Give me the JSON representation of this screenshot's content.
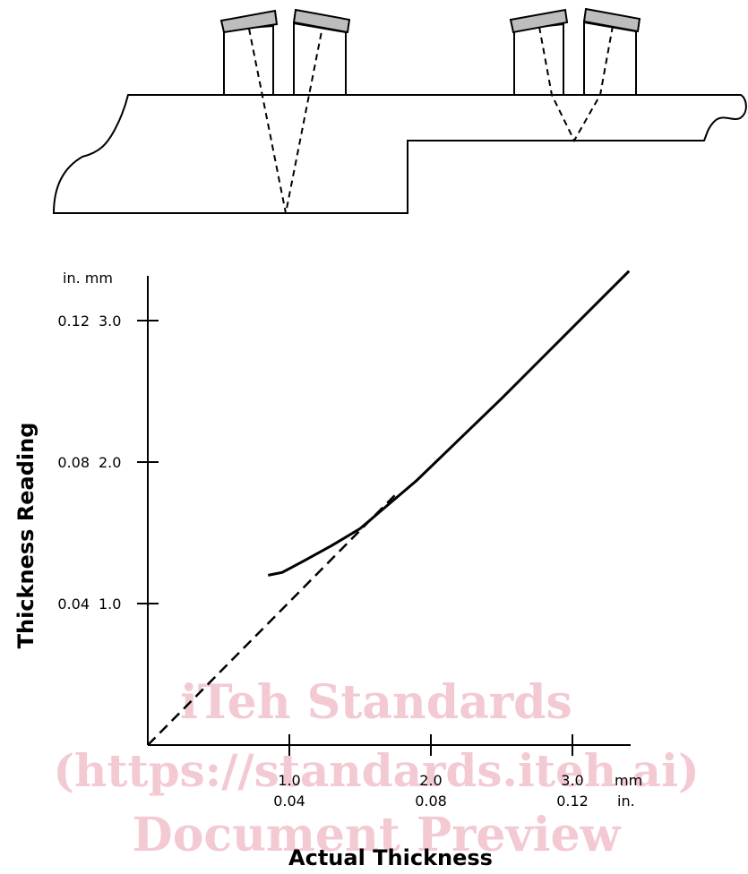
{
  "watermark": {
    "line1": "iTeh Standards",
    "line2": "(https://standards.iteh.ai)",
    "line3": "Document Preview",
    "color": "#f3c9d2"
  },
  "chart_data": {
    "type": "line",
    "xlabel": "Actual Thickness",
    "ylabel": "Thickness Reading",
    "x_unit_primary": "mm",
    "x_unit_secondary": "in.",
    "y_unit_label": "in. mm",
    "xlim": [
      0,
      3.4
    ],
    "ylim": [
      0,
      3.3
    ],
    "x_ticks": [
      {
        "value": 1.0,
        "mm": "1.0",
        "in": "0.04"
      },
      {
        "value": 2.0,
        "mm": "2.0",
        "in": "0.08"
      },
      {
        "value": 3.0,
        "mm": "3.0",
        "in": "0.12"
      }
    ],
    "y_ticks": [
      {
        "value": 1.0,
        "mm": "1.0",
        "in": "0.04"
      },
      {
        "value": 2.0,
        "mm": "2.0",
        "in": "0.08"
      },
      {
        "value": 3.0,
        "mm": "3.0",
        "in": "0.12"
      }
    ],
    "series": [
      {
        "style": "solid",
        "x": [
          0.85,
          0.95,
          1.1,
          1.3,
          1.5,
          1.7,
          1.9,
          2.2,
          2.5,
          2.8,
          3.1,
          3.4
        ],
        "y": [
          1.2,
          1.22,
          1.3,
          1.41,
          1.53,
          1.7,
          1.87,
          2.16,
          2.45,
          2.75,
          3.05,
          3.35
        ]
      },
      {
        "style": "dashed",
        "x": [
          0.0,
          1.75
        ],
        "y": [
          0.0,
          1.77
        ]
      }
    ],
    "grid": false
  },
  "diagram": {
    "beam_color": "#000000",
    "transducer_cap_color": "#bdbdbd"
  }
}
